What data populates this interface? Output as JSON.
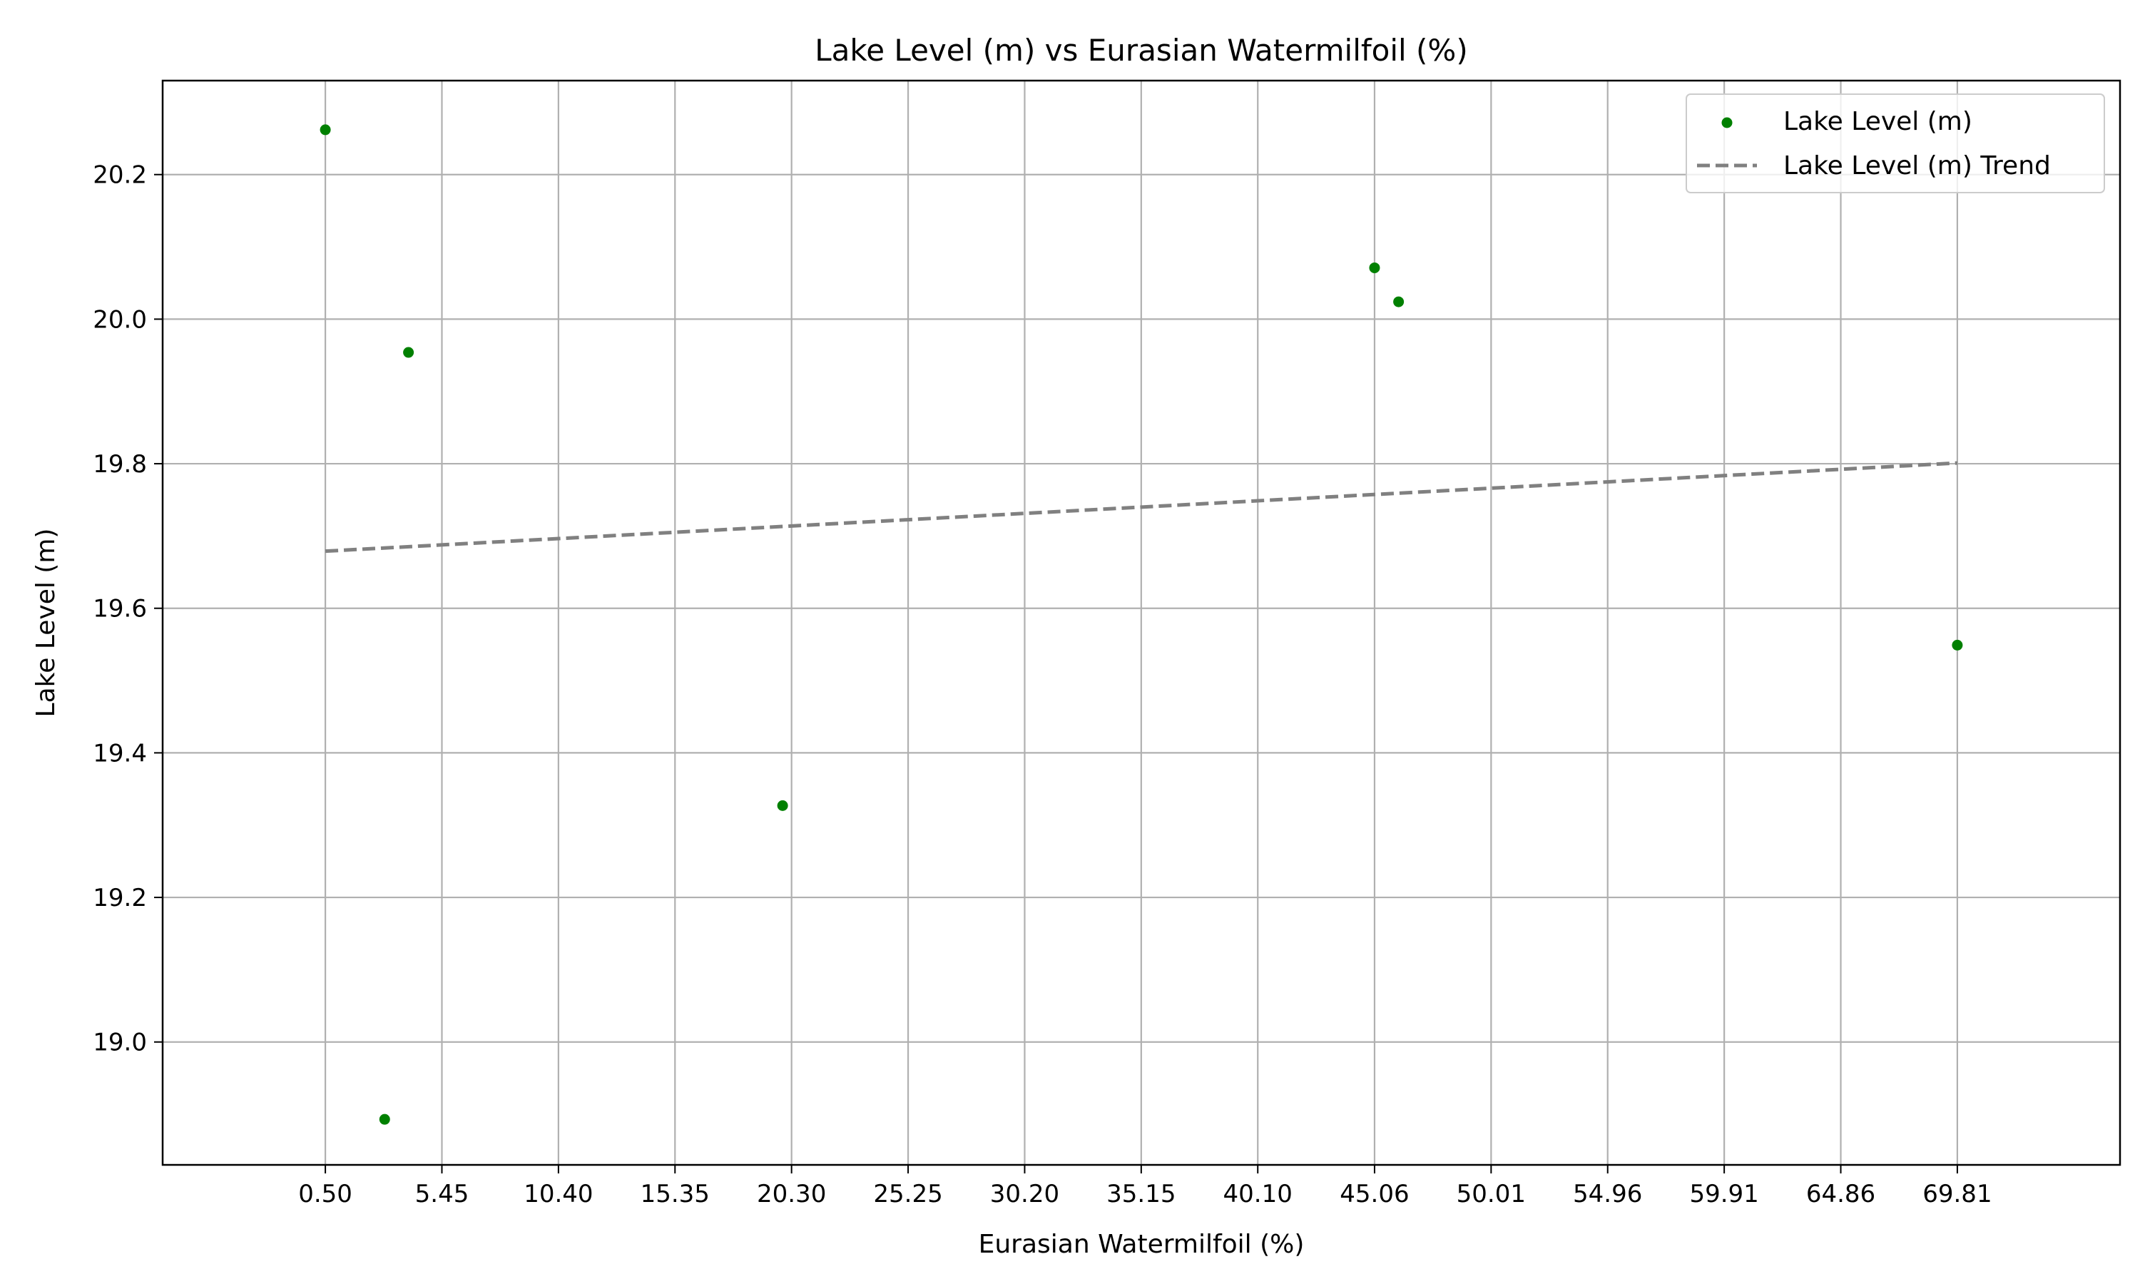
{
  "chart_data": {
    "type": "scatter",
    "title": "Lake Level (m) vs Eurasian Watermilfoil (%)",
    "xlabel": "Eurasian Watermilfoil (%)",
    "ylabel": "Lake Level (m)",
    "xlim": [
      -6.41,
      76.72
    ],
    "ylim": [
      18.83,
      20.33
    ],
    "xticks": [
      0.5,
      5.45,
      10.4,
      15.35,
      20.3,
      25.25,
      30.2,
      35.15,
      40.1,
      45.06,
      50.01,
      54.96,
      59.91,
      64.86,
      69.81
    ],
    "xtick_labels": [
      "0.50",
      "5.45",
      "10.40",
      "15.35",
      "20.30",
      "25.25",
      "30.20",
      "35.15",
      "40.10",
      "45.06",
      "50.01",
      "54.96",
      "59.91",
      "64.86",
      "69.81"
    ],
    "yticks": [
      19.0,
      19.2,
      19.4,
      19.6,
      19.8,
      20.0,
      20.2
    ],
    "ytick_labels": [
      "19.0",
      "19.2",
      "19.4",
      "19.6",
      "19.8",
      "20.0",
      "20.2"
    ],
    "grid": true,
    "legend_position": "top-right",
    "series": [
      {
        "name": "Lake Level (m)",
        "kind": "scatter",
        "color": "#008000",
        "x": [
          0.5,
          3.02,
          4.03,
          19.92,
          45.06,
          46.08,
          69.81
        ],
        "y": [
          20.262,
          18.893,
          19.954,
          19.327,
          20.071,
          20.024,
          19.549
        ]
      },
      {
        "name": "Lake Level (m) Trend",
        "kind": "line",
        "style": "dashed",
        "color": "#808080",
        "x": [
          0.5,
          69.81
        ],
        "y": [
          19.679,
          19.801
        ]
      }
    ]
  }
}
